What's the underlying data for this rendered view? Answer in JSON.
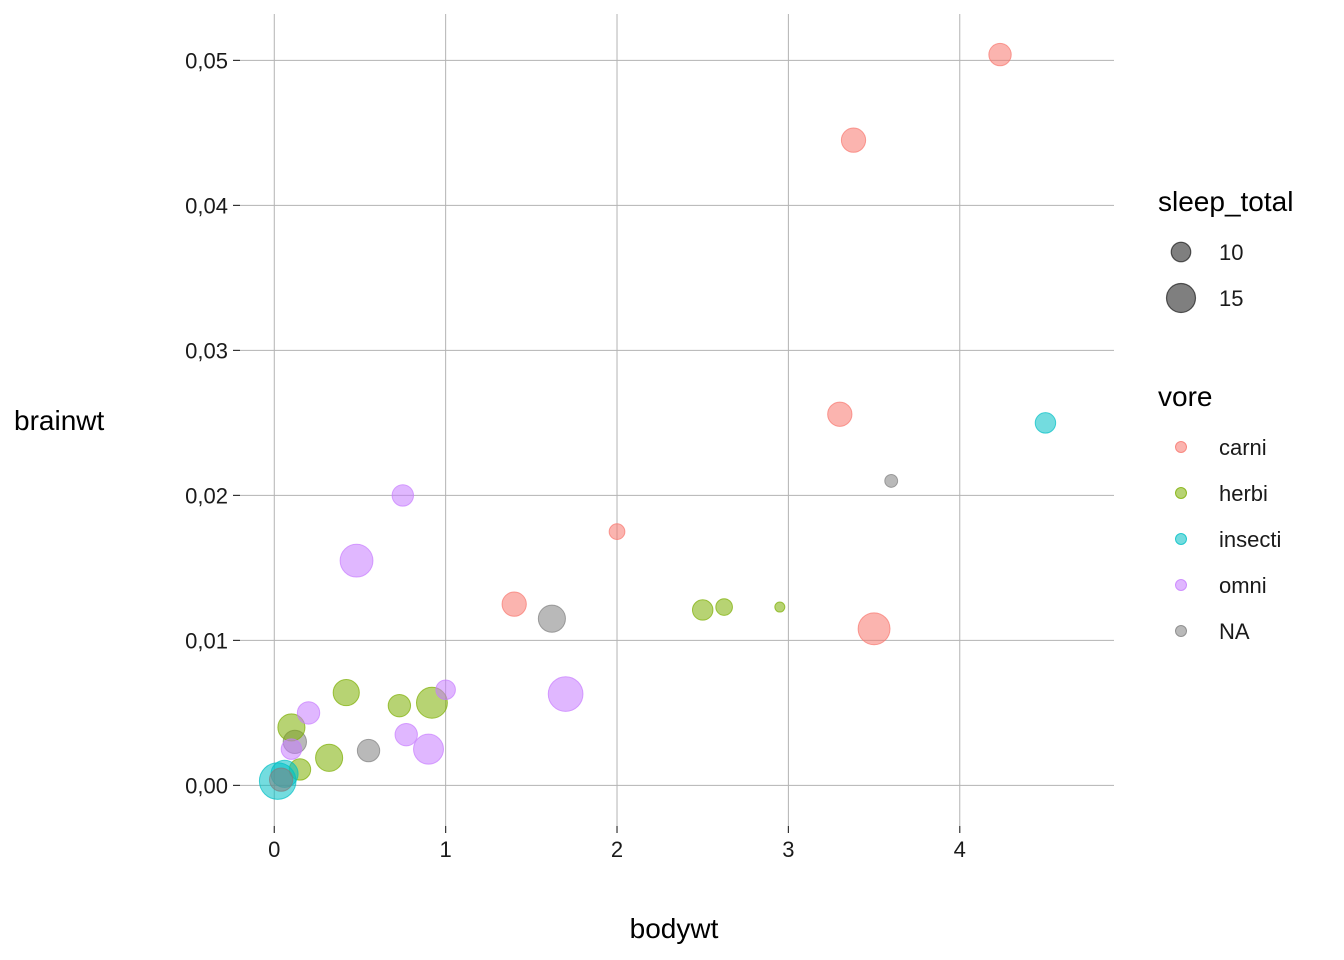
{
  "chart_data": {
    "type": "scatter",
    "xlabel": "bodywt",
    "ylabel": "brainwt",
    "xlim": [
      -0.2,
      4.9
    ],
    "ylim": [
      -0.0028,
      0.0532
    ],
    "x_ticks": [
      0,
      1,
      2,
      3,
      4
    ],
    "x_tick_labels": [
      "0",
      "1",
      "2",
      "3",
      "4"
    ],
    "y_ticks": [
      0,
      0.01,
      0.02,
      0.03,
      0.04,
      0.05
    ],
    "y_tick_labels": [
      "0,00",
      "0,01",
      "0,02",
      "0,03",
      "0,04",
      "0,05"
    ],
    "grid": true,
    "size_legend": {
      "title": "sleep_total",
      "values": [
        10,
        15
      ],
      "labels": [
        "10",
        "15"
      ]
    },
    "color_legend": {
      "title": "vore",
      "categories": [
        "carni",
        "herbi",
        "insecti",
        "omni",
        "NA"
      ],
      "colors": [
        "#F8766D",
        "#7CAE00",
        "#00BFC4",
        "#C77CFF",
        "#7F7F7F"
      ]
    },
    "points": [
      {
        "x": 4.235,
        "y": 0.0504,
        "size": 11.5,
        "vore": "carni"
      },
      {
        "x": 3.38,
        "y": 0.0445,
        "size": 12.5,
        "vore": "carni"
      },
      {
        "x": 3.3,
        "y": 0.0256,
        "size": 12.5,
        "vore": "carni"
      },
      {
        "x": 2.0,
        "y": 0.0175,
        "size": 8.0,
        "vore": "carni"
      },
      {
        "x": 1.4,
        "y": 0.0125,
        "size": 12.5,
        "vore": "carni"
      },
      {
        "x": 3.5,
        "y": 0.0108,
        "size": 16.5,
        "vore": "carni"
      },
      {
        "x": 4.5,
        "y": 0.025,
        "size": 10.5,
        "vore": "insecti"
      },
      {
        "x": 3.6,
        "y": 0.021,
        "size": 6.5,
        "vore": "NA"
      },
      {
        "x": 1.62,
        "y": 0.0115,
        "size": 14.0,
        "vore": "NA"
      },
      {
        "x": 0.55,
        "y": 0.0024,
        "size": 11.5,
        "vore": "NA"
      },
      {
        "x": 0.12,
        "y": 0.003,
        "size": 12.0,
        "vore": "NA"
      },
      {
        "x": 2.5,
        "y": 0.0121,
        "size": 10.5,
        "vore": "herbi"
      },
      {
        "x": 2.625,
        "y": 0.0123,
        "size": 8.5,
        "vore": "herbi"
      },
      {
        "x": 2.95,
        "y": 0.0123,
        "size": 5.0,
        "vore": "herbi"
      },
      {
        "x": 0.42,
        "y": 0.0064,
        "size": 13.5,
        "vore": "herbi"
      },
      {
        "x": 0.73,
        "y": 0.0055,
        "size": 11.5,
        "vore": "herbi"
      },
      {
        "x": 0.92,
        "y": 0.0057,
        "size": 16.0,
        "vore": "herbi"
      },
      {
        "x": 0.1,
        "y": 0.004,
        "size": 14.0,
        "vore": "herbi"
      },
      {
        "x": 0.32,
        "y": 0.0019,
        "size": 14.0,
        "vore": "herbi"
      },
      {
        "x": 0.15,
        "y": 0.0011,
        "size": 11.0,
        "vore": "herbi"
      },
      {
        "x": 0.75,
        "y": 0.02,
        "size": 11.0,
        "vore": "omni"
      },
      {
        "x": 0.48,
        "y": 0.0155,
        "size": 17.0,
        "vore": "omni"
      },
      {
        "x": 1.0,
        "y": 0.0066,
        "size": 10.0,
        "vore": "omni"
      },
      {
        "x": 1.7,
        "y": 0.0063,
        "size": 18.0,
        "vore": "omni"
      },
      {
        "x": 0.2,
        "y": 0.005,
        "size": 11.5,
        "vore": "omni"
      },
      {
        "x": 0.77,
        "y": 0.0035,
        "size": 11.5,
        "vore": "omni"
      },
      {
        "x": 0.9,
        "y": 0.0025,
        "size": 15.5,
        "vore": "omni"
      },
      {
        "x": 0.1,
        "y": 0.0025,
        "size": 10.5,
        "vore": "omni"
      },
      {
        "x": 0.06,
        "y": 0.0008,
        "size": 14.0,
        "vore": "insecti"
      },
      {
        "x": 0.02,
        "y": 0.0003,
        "size": 19.0,
        "vore": "insecti"
      },
      {
        "x": 0.04,
        "y": 0.0004,
        "size": 12.0,
        "vore": "NA"
      }
    ]
  }
}
